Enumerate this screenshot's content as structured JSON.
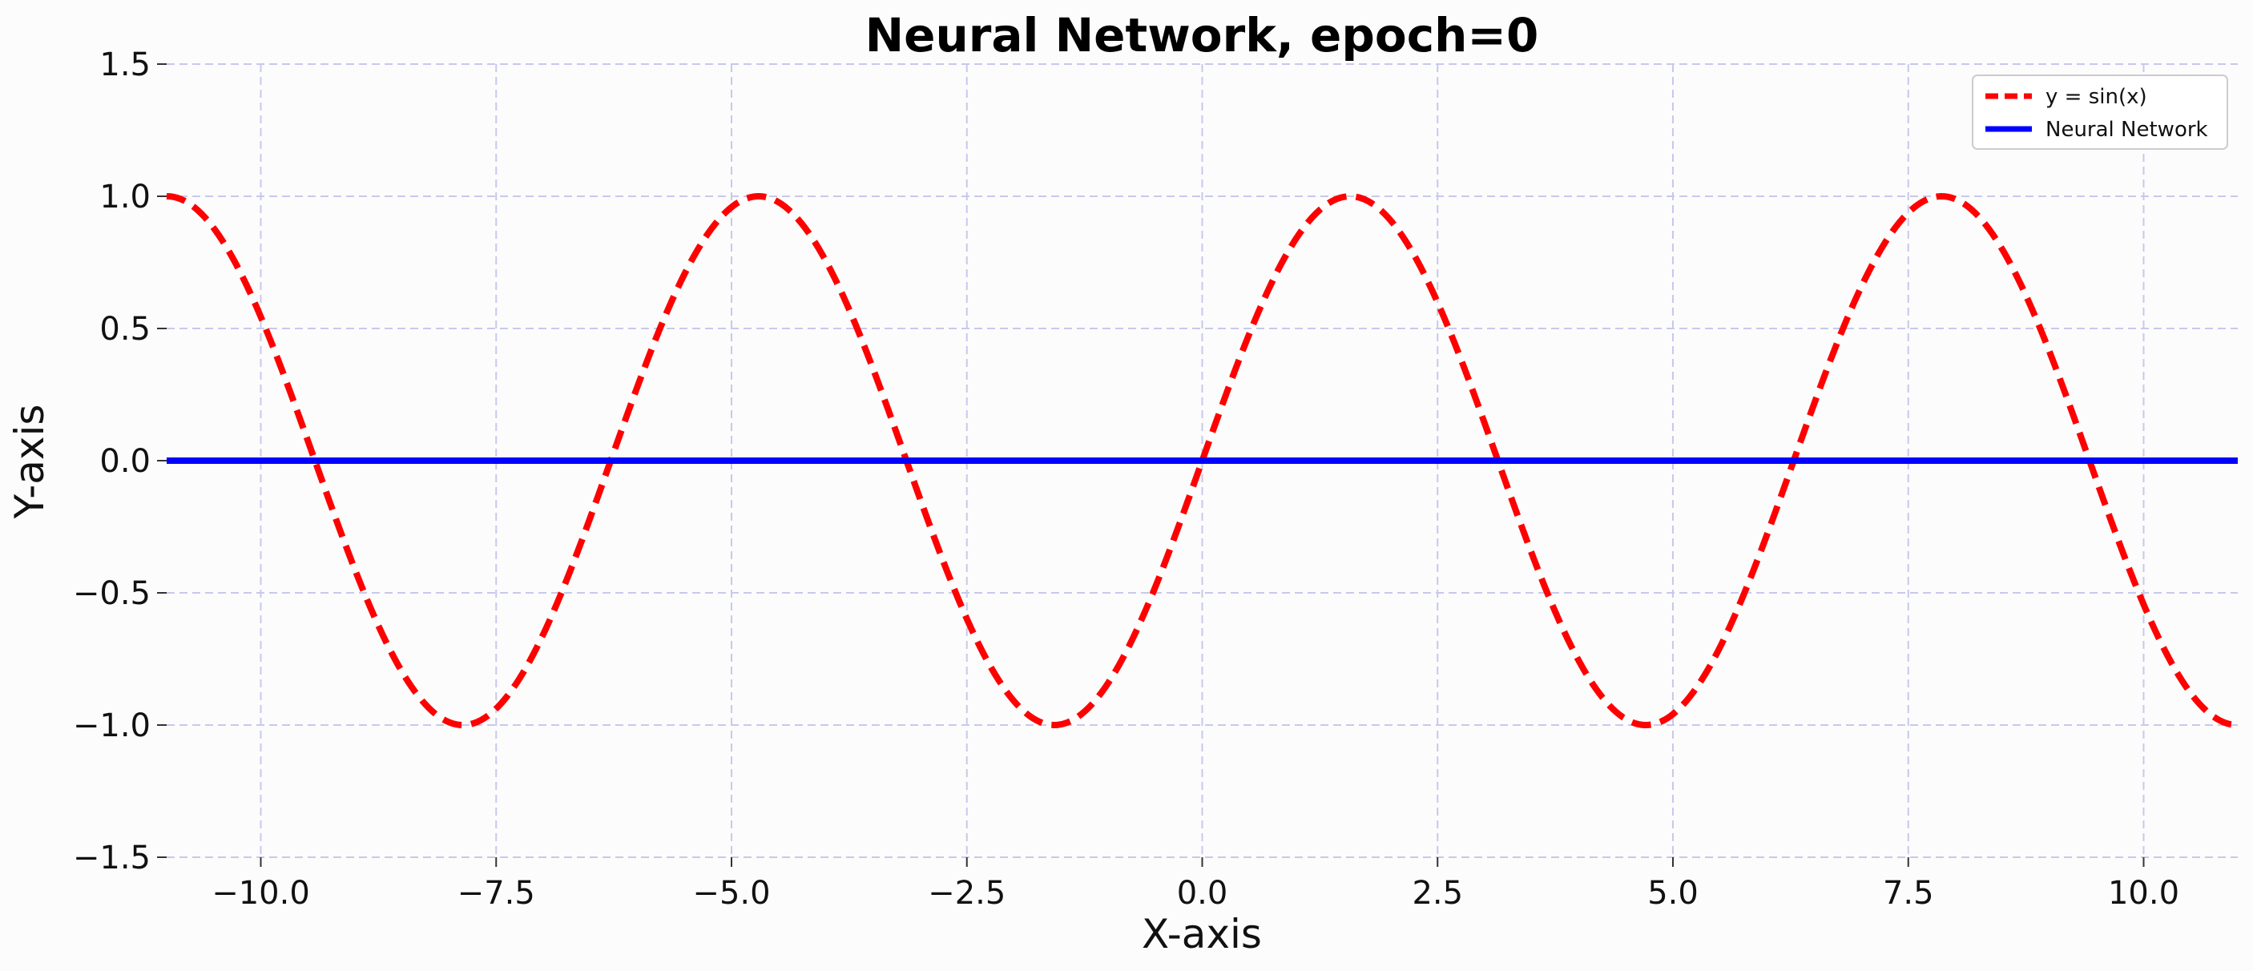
{
  "chart_data": {
    "type": "line",
    "title": "Neural Network, epoch=0",
    "xlabel": "X-axis",
    "ylabel": "Y-axis",
    "xlim": [
      -11.0,
      11.0
    ],
    "ylim": [
      -1.5,
      1.5
    ],
    "xticks": [
      -10.0,
      -7.5,
      -5.0,
      -2.5,
      0.0,
      2.5,
      5.0,
      7.5,
      10.0
    ],
    "xtick_labels": [
      "−10.0",
      "−7.5",
      "−5.0",
      "−2.5",
      "0.0",
      "2.5",
      "5.0",
      "7.5",
      "10.0"
    ],
    "yticks": [
      -1.5,
      -1.0,
      -0.5,
      0.0,
      0.5,
      1.0,
      1.5
    ],
    "ytick_labels": [
      "−1.5",
      "−1.0",
      "−0.5",
      "0.0",
      "0.5",
      "1.0",
      "1.5"
    ],
    "grid": true,
    "legend_position": "top-right",
    "series": [
      {
        "name": "y = sin(x)",
        "color": "#ff0000",
        "style": "dashed",
        "function": "sin",
        "x_range": [
          -11.0,
          11.0
        ]
      },
      {
        "name": "Neural Network",
        "color": "#0000ff",
        "style": "solid",
        "x": [
          -11.0,
          11.0
        ],
        "y": [
          0.0,
          0.0
        ]
      }
    ]
  }
}
